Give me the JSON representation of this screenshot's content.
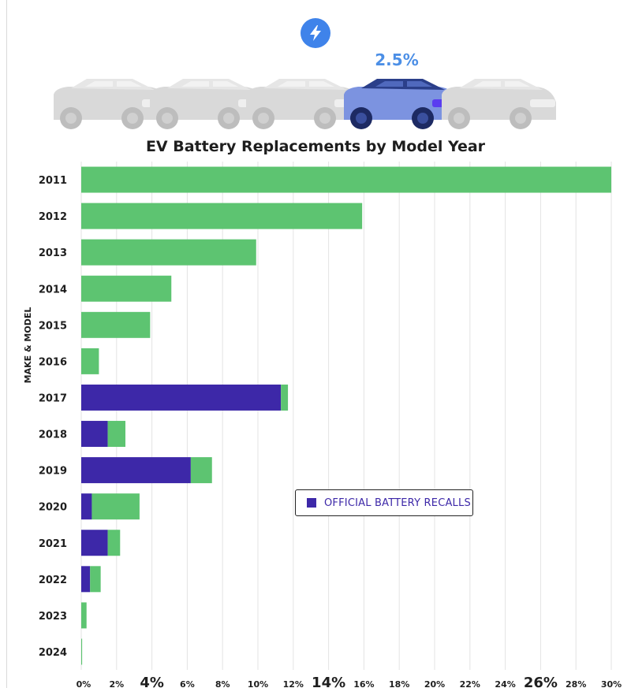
{
  "header": {
    "stat": "2.5%",
    "icon": "lightning-bolt-icon",
    "accent": "#3f83ea"
  },
  "chart_data": {
    "type": "bar",
    "orientation": "horizontal",
    "stacked": true,
    "title": "EV Battery Replacements by Model Year",
    "ylabel": "MAKE & MODEL",
    "xlabel": "",
    "xlim": [
      0,
      30
    ],
    "grid": true,
    "categories": [
      "2011",
      "2012",
      "2013",
      "2014",
      "2015",
      "2016",
      "2017",
      "2018",
      "2019",
      "2020",
      "2021",
      "2022",
      "2023",
      "2024"
    ],
    "series": [
      {
        "name": "OFFICIAL BATTERY RECALLS",
        "color": "#3d28a8",
        "values": [
          0,
          0,
          0,
          0,
          0,
          0,
          11.3,
          1.5,
          6.2,
          0.6,
          1.5,
          0.5,
          0,
          0
        ]
      },
      {
        "name": "",
        "color": "#5dc471",
        "values": [
          30,
          15.9,
          9.9,
          5.1,
          3.9,
          1.0,
          0.4,
          1.0,
          1.2,
          2.7,
          0.7,
          0.6,
          0.3,
          0.05
        ]
      }
    ],
    "x_ticks": [
      {
        "value": 0,
        "label": "0%",
        "big": false
      },
      {
        "value": 2,
        "label": "2%",
        "big": false
      },
      {
        "value": 4,
        "label": "4%",
        "big": true
      },
      {
        "value": 6,
        "label": "6%",
        "big": false
      },
      {
        "value": 8,
        "label": "8%",
        "big": false
      },
      {
        "value": 10,
        "label": "10%",
        "big": false
      },
      {
        "value": 12,
        "label": "12%",
        "big": false
      },
      {
        "value": 14,
        "label": "14%",
        "big": true
      },
      {
        "value": 16,
        "label": "16%",
        "big": false
      },
      {
        "value": 18,
        "label": "18%",
        "big": false
      },
      {
        "value": 20,
        "label": "20%",
        "big": false
      },
      {
        "value": 22,
        "label": "22%",
        "big": false
      },
      {
        "value": 24,
        "label": "24%",
        "big": false
      },
      {
        "value": 26,
        "label": "26%",
        "big": true
      },
      {
        "value": 28,
        "label": "28%",
        "big": false
      },
      {
        "value": 30,
        "label": "30%",
        "big": false
      }
    ],
    "legend": {
      "label": "OFFICIAL BATTERY RECALLS",
      "placement": "center-right"
    }
  }
}
